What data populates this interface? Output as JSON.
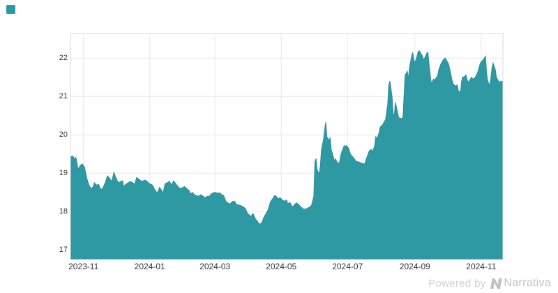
{
  "page": {
    "background": "#ffffff"
  },
  "legend": {
    "swatch_color": "#2f99a3"
  },
  "footer": {
    "powered_by": "Powered by",
    "brand": "Narrativa",
    "powered_color": "#d0d0d0",
    "brand_color": "#c2c2c2"
  },
  "chart_data": {
    "type": "area",
    "title": "",
    "fill_color": "#2f99a3",
    "edge_color": "#2b8f99",
    "grid_color": "#e8e8e8",
    "border_color": "#d9d9d9",
    "label_color": "#333333",
    "x_ticks": [
      "2023-11",
      "2024-01",
      "2024-03",
      "2024-05",
      "2024-07",
      "2024-09",
      "2024-11"
    ],
    "x_tick_days": [
      12,
      73,
      133,
      194,
      255,
      317,
      378
    ],
    "x_start_date": "2023-10-20",
    "x_end_date": "2024-11-21",
    "x_span_days": 398,
    "y_ticks": [
      17,
      18,
      19,
      20,
      21,
      22
    ],
    "y_min": 16.75,
    "y_max": 22.64,
    "grid_on": true,
    "legend_position": "top-left",
    "series": [
      {
        "name": "value",
        "points": [
          [
            0,
            19.42
          ],
          [
            2,
            19.45
          ],
          [
            4,
            19.36
          ],
          [
            5,
            19.41
          ],
          [
            7,
            19.1
          ],
          [
            9,
            19.2
          ],
          [
            11,
            19.24
          ],
          [
            13,
            19.15
          ],
          [
            15,
            18.87
          ],
          [
            17,
            18.69
          ],
          [
            19,
            18.6
          ],
          [
            21,
            18.65
          ],
          [
            22,
            18.75
          ],
          [
            24,
            18.69
          ],
          [
            26,
            18.71
          ],
          [
            28,
            18.57
          ],
          [
            30,
            18.62
          ],
          [
            32,
            18.75
          ],
          [
            34,
            18.93
          ],
          [
            36,
            18.87
          ],
          [
            38,
            18.78
          ],
          [
            40,
            19.02
          ],
          [
            42,
            18.87
          ],
          [
            44,
            18.75
          ],
          [
            46,
            18.78
          ],
          [
            48,
            18.8
          ],
          [
            49,
            18.65
          ],
          [
            51,
            18.71
          ],
          [
            53,
            18.75
          ],
          [
            55,
            18.78
          ],
          [
            57,
            18.76
          ],
          [
            59,
            18.71
          ],
          [
            61,
            18.89
          ],
          [
            64,
            18.82
          ],
          [
            66,
            18.78
          ],
          [
            68,
            18.82
          ],
          [
            70,
            18.8
          ],
          [
            73,
            18.72
          ],
          [
            75,
            18.7
          ],
          [
            76,
            18.66
          ],
          [
            78,
            18.55
          ],
          [
            80,
            18.48
          ],
          [
            82,
            18.63
          ],
          [
            84,
            18.55
          ],
          [
            85,
            18.45
          ],
          [
            87,
            18.72
          ],
          [
            89,
            18.75
          ],
          [
            91,
            18.79
          ],
          [
            93,
            18.69
          ],
          [
            95,
            18.8
          ],
          [
            97,
            18.72
          ],
          [
            99,
            18.65
          ],
          [
            101,
            18.6
          ],
          [
            103,
            18.62
          ],
          [
            105,
            18.65
          ],
          [
            107,
            18.6
          ],
          [
            109,
            18.55
          ],
          [
            111,
            18.45
          ],
          [
            112,
            18.5
          ],
          [
            115,
            18.42
          ],
          [
            118,
            18.4
          ],
          [
            120,
            18.44
          ],
          [
            121,
            18.42
          ],
          [
            124,
            18.36
          ],
          [
            126,
            18.4
          ],
          [
            128,
            18.4
          ],
          [
            130,
            18.47
          ],
          [
            133,
            18.5
          ],
          [
            135,
            18.48
          ],
          [
            138,
            18.48
          ],
          [
            139,
            18.44
          ],
          [
            141,
            18.42
          ],
          [
            143,
            18.27
          ],
          [
            145,
            18.22
          ],
          [
            147,
            18.2
          ],
          [
            149,
            18.26
          ],
          [
            151,
            18.27
          ],
          [
            153,
            18.18
          ],
          [
            155,
            18.17
          ],
          [
            157,
            18.15
          ],
          [
            159,
            18.12
          ],
          [
            161,
            18.08
          ],
          [
            163,
            17.95
          ],
          [
            165,
            17.9
          ],
          [
            166,
            17.87
          ],
          [
            168,
            17.95
          ],
          [
            170,
            17.82
          ],
          [
            172,
            17.75
          ],
          [
            174,
            17.67
          ],
          [
            176,
            17.7
          ],
          [
            178,
            17.85
          ],
          [
            180,
            17.95
          ],
          [
            182,
            18.05
          ],
          [
            184,
            18.25
          ],
          [
            186,
            18.33
          ],
          [
            188,
            18.42
          ],
          [
            190,
            18.38
          ],
          [
            191,
            18.33
          ],
          [
            193,
            18.36
          ],
          [
            195,
            18.3
          ],
          [
            197,
            18.27
          ],
          [
            199,
            18.3
          ],
          [
            200,
            18.2
          ],
          [
            202,
            18.24
          ],
          [
            204,
            18.12
          ],
          [
            206,
            18.17
          ],
          [
            208,
            18.23
          ],
          [
            210,
            18.18
          ],
          [
            212,
            18.12
          ],
          [
            214,
            18.07
          ],
          [
            216,
            18.06
          ],
          [
            218,
            18.09
          ],
          [
            220,
            18.11
          ],
          [
            222,
            18.17
          ],
          [
            224,
            18.4
          ],
          [
            225,
            19.3
          ],
          [
            226,
            19.38
          ],
          [
            227,
            19.1
          ],
          [
            229,
            18.97
          ],
          [
            230,
            19.2
          ],
          [
            231,
            19.6
          ],
          [
            233,
            19.9
          ],
          [
            234,
            20.15
          ],
          [
            235,
            20.33
          ],
          [
            236,
            19.95
          ],
          [
            238,
            19.85
          ],
          [
            239,
            19.93
          ],
          [
            240,
            19.62
          ],
          [
            242,
            19.42
          ],
          [
            243,
            19.33
          ],
          [
            244,
            19.37
          ],
          [
            245,
            19.3
          ],
          [
            247,
            19.25
          ],
          [
            248,
            19.32
          ],
          [
            249,
            19.5
          ],
          [
            251,
            19.65
          ],
          [
            252,
            19.72
          ],
          [
            253,
            19.69
          ],
          [
            254,
            19.72
          ],
          [
            256,
            19.65
          ],
          [
            257,
            19.55
          ],
          [
            258,
            19.48
          ],
          [
            260,
            19.42
          ],
          [
            262,
            19.35
          ],
          [
            263,
            19.3
          ],
          [
            265,
            19.3
          ],
          [
            267,
            19.27
          ],
          [
            269,
            19.25
          ],
          [
            271,
            19.24
          ],
          [
            272,
            19.35
          ],
          [
            274,
            19.5
          ],
          [
            275,
            19.58
          ],
          [
            277,
            19.62
          ],
          [
            278,
            19.55
          ],
          [
            280,
            19.72
          ],
          [
            281,
            19.95
          ],
          [
            282,
            19.9
          ],
          [
            284,
            20.05
          ],
          [
            285,
            20.2
          ],
          [
            287,
            20.25
          ],
          [
            289,
            20.35
          ],
          [
            290,
            20.4
          ],
          [
            292,
            20.8
          ],
          [
            293,
            21.3
          ],
          [
            294,
            21.4
          ],
          [
            296,
            21.0
          ],
          [
            297,
            20.55
          ],
          [
            298,
            20.48
          ],
          [
            299,
            20.85
          ],
          [
            301,
            20.6
          ],
          [
            302,
            20.45
          ],
          [
            304,
            20.42
          ],
          [
            306,
            20.45
          ],
          [
            307,
            21.0
          ],
          [
            308,
            21.55
          ],
          [
            310,
            21.66
          ],
          [
            311,
            21.45
          ],
          [
            312,
            21.75
          ],
          [
            314,
            22.05
          ],
          [
            315,
            22.15
          ],
          [
            316,
            21.95
          ],
          [
            317,
            21.87
          ],
          [
            319,
            22.05
          ],
          [
            320,
            22.17
          ],
          [
            321,
            22.19
          ],
          [
            323,
            22.1
          ],
          [
            324,
            22.05
          ],
          [
            325,
            21.95
          ],
          [
            326,
            22.0
          ],
          [
            328,
            22.13
          ],
          [
            329,
            22.15
          ],
          [
            330,
            21.85
          ],
          [
            332,
            21.35
          ],
          [
            333,
            21.38
          ],
          [
            334,
            21.45
          ],
          [
            335,
            21.42
          ],
          [
            337,
            21.5
          ],
          [
            338,
            21.55
          ],
          [
            339,
            21.7
          ],
          [
            341,
            21.85
          ],
          [
            342,
            21.9
          ],
          [
            343,
            21.95
          ],
          [
            345,
            22.0
          ],
          [
            346,
            21.95
          ],
          [
            348,
            21.85
          ],
          [
            350,
            21.6
          ],
          [
            351,
            21.45
          ],
          [
            352,
            21.35
          ],
          [
            353,
            21.3
          ],
          [
            355,
            21.27
          ],
          [
            356,
            21.3
          ],
          [
            357,
            21.15
          ],
          [
            359,
            21.11
          ],
          [
            360,
            21.4
          ],
          [
            361,
            21.51
          ],
          [
            362,
            21.5
          ],
          [
            364,
            21.56
          ],
          [
            365,
            21.45
          ],
          [
            366,
            21.36
          ],
          [
            368,
            21.45
          ],
          [
            369,
            21.5
          ],
          [
            370,
            21.47
          ],
          [
            371,
            21.45
          ],
          [
            373,
            21.52
          ],
          [
            374,
            21.58
          ],
          [
            375,
            21.65
          ],
          [
            377,
            21.85
          ],
          [
            378,
            21.9
          ],
          [
            379,
            21.93
          ],
          [
            380,
            21.96
          ],
          [
            382,
            22.05
          ],
          [
            383,
            21.6
          ],
          [
            384,
            21.4
          ],
          [
            386,
            21.28
          ],
          [
            387,
            21.5
          ],
          [
            388,
            21.75
          ],
          [
            389,
            21.87
          ],
          [
            391,
            21.7
          ],
          [
            392,
            21.5
          ],
          [
            393,
            21.45
          ],
          [
            395,
            21.35
          ],
          [
            396,
            21.4
          ],
          [
            397,
            21.38
          ],
          [
            398,
            21.4
          ]
        ]
      }
    ]
  }
}
